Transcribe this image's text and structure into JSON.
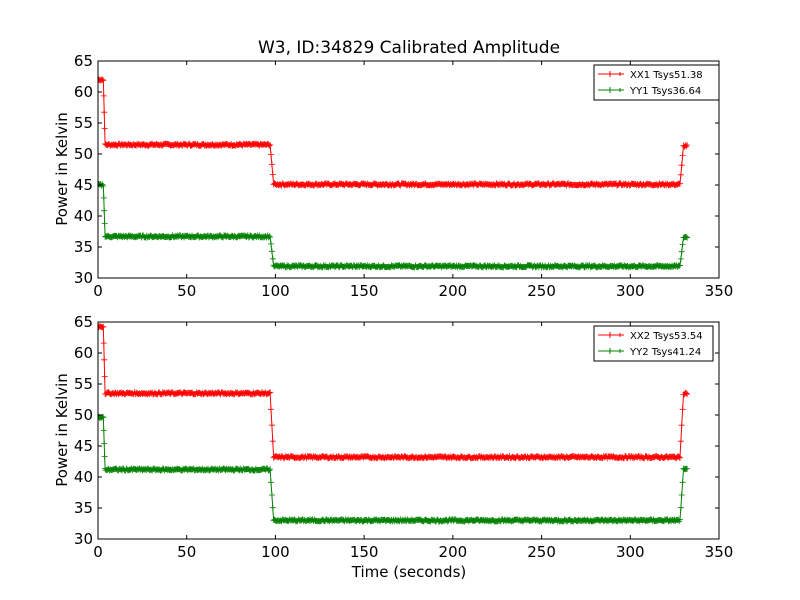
{
  "chart_data": [
    {
      "type": "line",
      "title": "W3, ID:34829 Calibrated Amplitude",
      "xlabel": "",
      "ylabel": "Power in Kelvin",
      "xlim": [
        0,
        350
      ],
      "ylim": [
        30,
        65
      ],
      "xticks": [
        0,
        50,
        100,
        150,
        200,
        250,
        300,
        350
      ],
      "yticks": [
        30,
        35,
        40,
        45,
        50,
        55,
        60,
        65
      ],
      "grid": false,
      "legend": "top-right",
      "series": [
        {
          "name": "XX1 Tsys51.38",
          "color": "#ff0000",
          "levels": [
            {
              "x0": 0,
              "x1": 3,
              "y": 62.0
            },
            {
              "x0": 4,
              "x1": 97,
              "y": 51.5
            },
            {
              "x0": 99,
              "x1": 328,
              "y": 45.1
            },
            {
              "x0": 330,
              "x1": 332,
              "y": 51.3
            }
          ]
        },
        {
          "name": "YY1 Tsys36.64",
          "color": "#008000",
          "levels": [
            {
              "x0": 0,
              "x1": 3,
              "y": 45.0
            },
            {
              "x0": 4,
              "x1": 97,
              "y": 36.7
            },
            {
              "x0": 99,
              "x1": 328,
              "y": 31.9
            },
            {
              "x0": 330,
              "x1": 332,
              "y": 36.6
            }
          ]
        }
      ]
    },
    {
      "type": "line",
      "title": "",
      "xlabel": "Time (seconds)",
      "ylabel": "Power in Kelvin",
      "xlim": [
        0,
        350
      ],
      "ylim": [
        30,
        65
      ],
      "xticks": [
        0,
        50,
        100,
        150,
        200,
        250,
        300,
        350
      ],
      "yticks": [
        30,
        35,
        40,
        45,
        50,
        55,
        60,
        65
      ],
      "grid": false,
      "legend": "top-right",
      "series": [
        {
          "name": "XX2 Tsys53.54",
          "color": "#ff0000",
          "levels": [
            {
              "x0": 0,
              "x1": 3,
              "y": 64.3
            },
            {
              "x0": 4,
              "x1": 97,
              "y": 53.5
            },
            {
              "x0": 99,
              "x1": 328,
              "y": 43.2
            },
            {
              "x0": 330,
              "x1": 332,
              "y": 53.5
            }
          ]
        },
        {
          "name": "YY2 Tsys41.24",
          "color": "#008000",
          "levels": [
            {
              "x0": 0,
              "x1": 3,
              "y": 49.6
            },
            {
              "x0": 4,
              "x1": 97,
              "y": 41.2
            },
            {
              "x0": 99,
              "x1": 328,
              "y": 33.0
            },
            {
              "x0": 330,
              "x1": 332,
              "y": 41.2
            }
          ]
        }
      ]
    }
  ]
}
